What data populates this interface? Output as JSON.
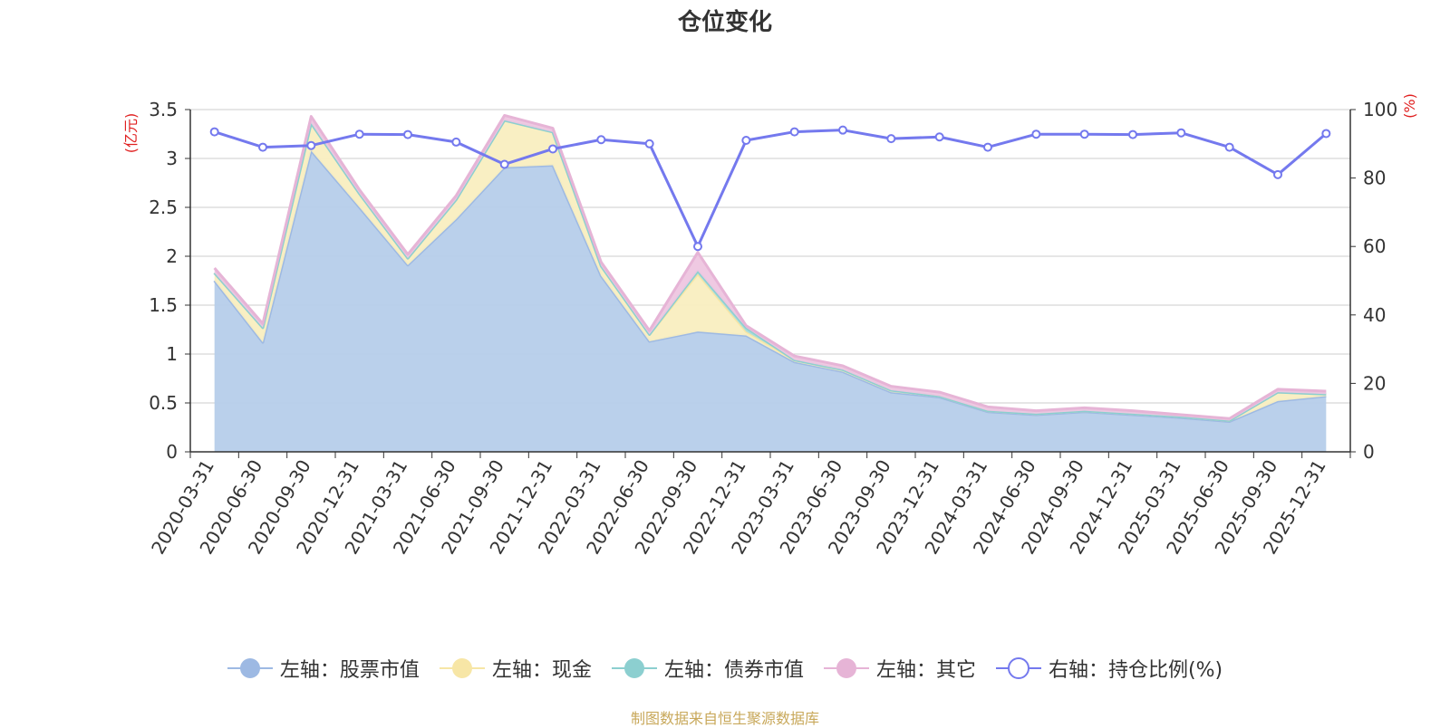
{
  "chart_data": {
    "type": "area",
    "title": "仓位变化",
    "left_axis": {
      "unit": "(亿元)",
      "min": 0,
      "max": 3.5,
      "ticks": [
        "0",
        "0.5",
        "1",
        "1.5",
        "2",
        "2.5",
        "3",
        "3.5"
      ]
    },
    "right_axis": {
      "unit": "(%)",
      "min": 0,
      "max": 100,
      "ticks": [
        "0",
        "20",
        "40",
        "60",
        "80",
        "100"
      ]
    },
    "categories": [
      "2020-03-31",
      "2020-06-30",
      "2020-09-30",
      "2020-12-31",
      "2021-03-31",
      "2021-06-30",
      "2021-09-30",
      "2021-12-31",
      "2022-03-31",
      "2022-06-30",
      "2022-09-30",
      "2022-12-31",
      "2023-03-31",
      "2023-06-30",
      "2023-09-30",
      "2023-12-31",
      "2024-03-31",
      "2024-06-30",
      "2024-09-30",
      "2024-12-31",
      "2025-03-31",
      "2025-06-30",
      "2025-09-30",
      "2025-12-31"
    ],
    "stacked_series": [
      {
        "name": "左轴：股票市值",
        "color": "#9db9e3",
        "fill": "#b6cdea",
        "values": [
          1.75,
          1.12,
          3.08,
          2.5,
          1.91,
          2.38,
          2.91,
          2.93,
          1.8,
          1.13,
          1.23,
          1.19,
          0.92,
          0.82,
          0.61,
          0.56,
          0.41,
          0.38,
          0.41,
          0.38,
          0.35,
          0.31,
          0.52,
          0.57
        ]
      },
      {
        "name": "左轴：现金",
        "color": "#f7e6a6",
        "fill": "#f9eec0",
        "values": [
          0.08,
          0.15,
          0.28,
          0.14,
          0.07,
          0.2,
          0.48,
          0.34,
          0.1,
          0.07,
          0.59,
          0.04,
          0.02,
          0.02,
          0.02,
          0.01,
          0.01,
          0.01,
          0.01,
          0.01,
          0.01,
          0.01,
          0.09,
          0.02
        ]
      },
      {
        "name": "左轴：债券市值",
        "color": "#8ccfd0",
        "fill": "#a8dcdc",
        "values": [
          0,
          0,
          0,
          0,
          0,
          0,
          0,
          0,
          0,
          0,
          0.03,
          0.04,
          0,
          0,
          0,
          0,
          0,
          0,
          0,
          0,
          0,
          0,
          0,
          0
        ]
      },
      {
        "name": "左轴：其它",
        "color": "#e6b4d6",
        "fill": "#eec6e0",
        "values": [
          0.05,
          0.04,
          0.07,
          0.04,
          0.04,
          0.04,
          0.05,
          0.04,
          0.04,
          0.04,
          0.19,
          0.02,
          0.04,
          0.04,
          0.04,
          0.04,
          0.04,
          0.03,
          0.03,
          0.03,
          0.02,
          0.02,
          0.03,
          0.03
        ]
      }
    ],
    "line_series": {
      "name": "右轴：持仓比例(%)",
      "color": "#7479ee",
      "values": [
        93.5,
        89.0,
        89.5,
        92.8,
        92.7,
        90.5,
        84.0,
        88.5,
        91.2,
        90.0,
        60.0,
        91.0,
        93.5,
        94.0,
        91.5,
        92.0,
        89.0,
        92.8,
        92.8,
        92.7,
        93.2,
        89.0,
        81.0,
        93.0
      ]
    },
    "source": "制图数据来自恒生聚源数据库"
  }
}
